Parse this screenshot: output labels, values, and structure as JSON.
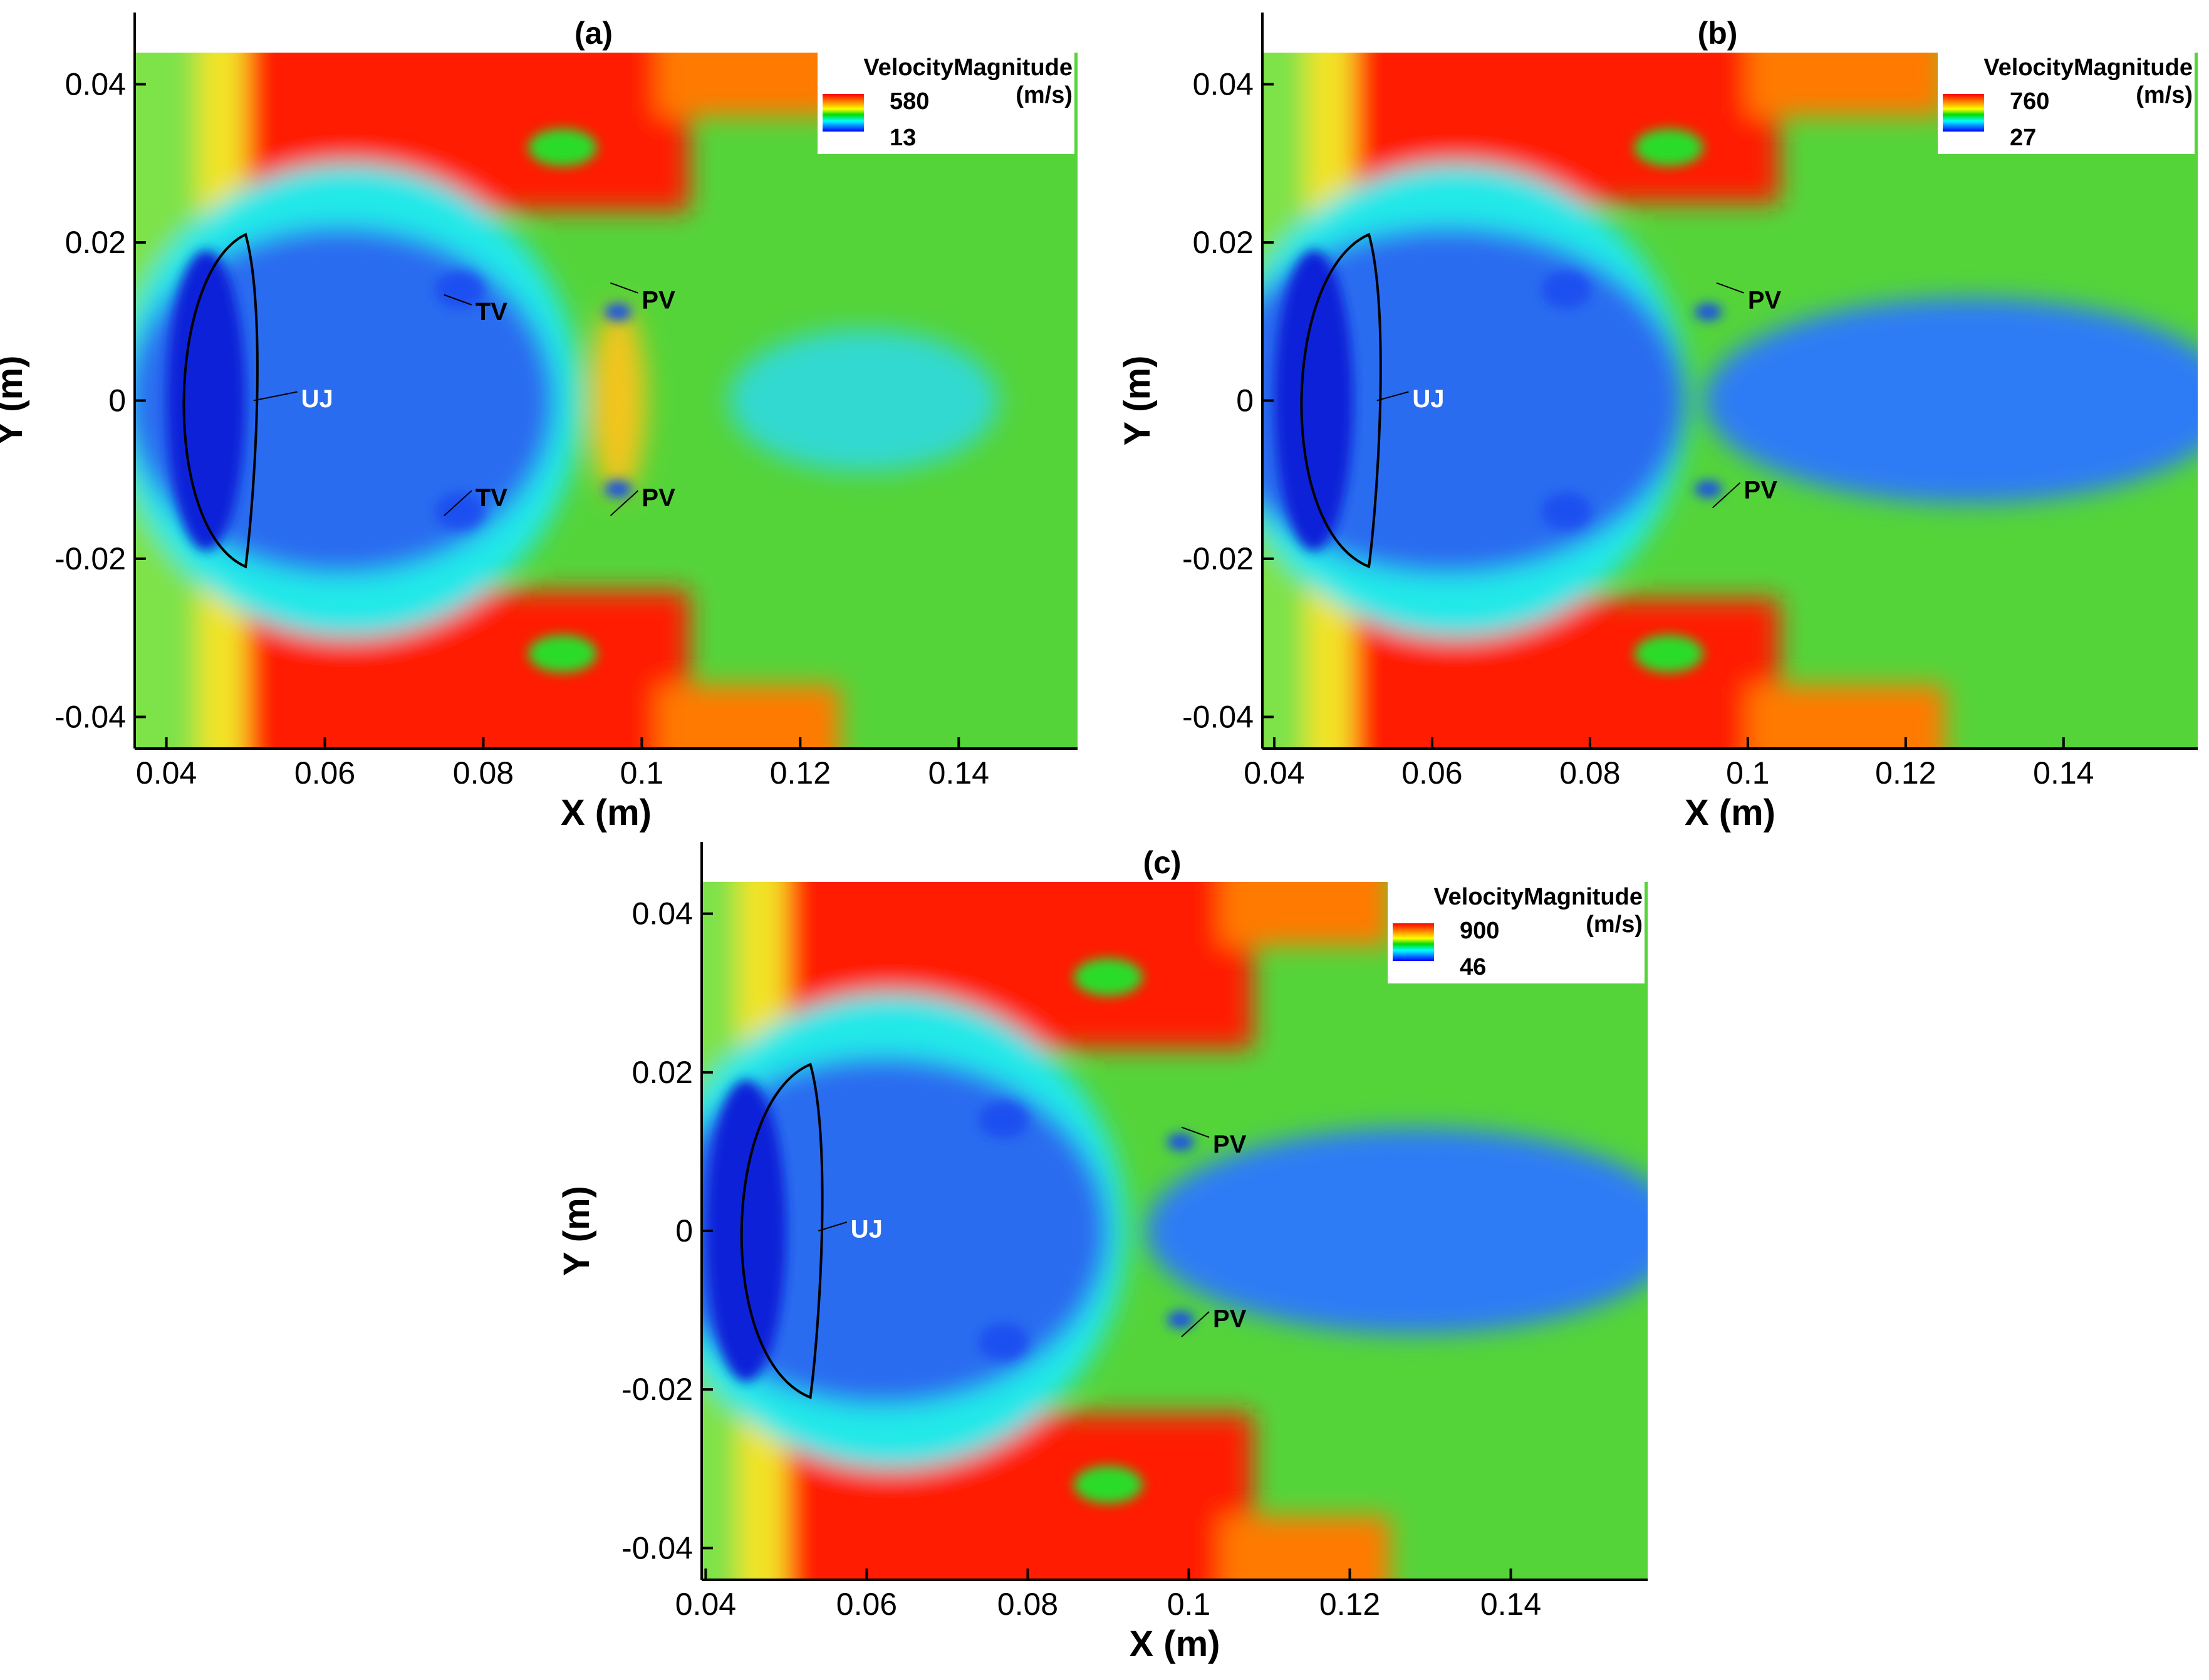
{
  "chart_data": [
    {
      "type": "heatmap",
      "title": "(a)",
      "xlabel": "X (m)",
      "ylabel": "Y (m)",
      "xlim": [
        0.036,
        0.155
      ],
      "ylim": [
        -0.044,
        0.044
      ],
      "xticks": [
        0.04,
        0.06,
        0.08,
        0.1,
        0.12,
        0.14
      ],
      "xtick_labels": [
        "0.04",
        "0.06",
        "0.08",
        "0.1",
        "0.12",
        "0.14"
      ],
      "yticks": [
        0.04,
        0.02,
        0,
        -0.02,
        -0.04
      ],
      "ytick_labels": [
        "0.04",
        "0.02",
        "0",
        "-0.02",
        "-0.04"
      ],
      "colorbar": {
        "title": "VelocityMagnitude",
        "unit": "(m/s)",
        "max": 580,
        "min": 13,
        "max_label": "580",
        "min_label": "13",
        "colormap": "rainbow",
        "placement": "top-right"
      },
      "annotations": [
        {
          "text": "UJ",
          "x": 0.057,
          "y": 0.0,
          "color": "#ffffff"
        },
        {
          "text": "TV",
          "x": 0.079,
          "y": 0.011,
          "color": "#000000"
        },
        {
          "text": "TV",
          "x": 0.079,
          "y": -0.0125,
          "color": "#000000"
        },
        {
          "text": "PV",
          "x": 0.1,
          "y": 0.0125,
          "color": "#000000"
        },
        {
          "text": "PV",
          "x": 0.1,
          "y": -0.0125,
          "color": "#000000"
        }
      ]
    },
    {
      "type": "heatmap",
      "title": "(b)",
      "xlabel": "X (m)",
      "ylabel": "Y (m)",
      "xlim": [
        0.0385,
        0.157
      ],
      "ylim": [
        -0.044,
        0.044
      ],
      "xticks": [
        0.04,
        0.06,
        0.08,
        0.1,
        0.12,
        0.14
      ],
      "xtick_labels": [
        "0.04",
        "0.06",
        "0.08",
        "0.1",
        "0.12",
        "0.14"
      ],
      "yticks": [
        0.04,
        0.02,
        0,
        -0.02,
        -0.04
      ],
      "ytick_labels": [
        "0.04",
        "0.02",
        "0",
        "-0.02",
        "-0.04"
      ],
      "colorbar": {
        "title": "VelocityMagnitude",
        "unit": "(m/s)",
        "max": 760,
        "min": 27,
        "max_label": "760",
        "min_label": "27",
        "colormap": "rainbow",
        "placement": "top-right"
      },
      "annotations": [
        {
          "text": "UJ",
          "x": 0.0575,
          "y": 0.0,
          "color": "#ffffff"
        },
        {
          "text": "PV",
          "x": 0.1,
          "y": 0.0125,
          "color": "#000000"
        },
        {
          "text": "PV",
          "x": 0.0995,
          "y": -0.0115,
          "color": "#000000"
        }
      ]
    },
    {
      "type": "heatmap",
      "title": "(c)",
      "xlabel": "X (m)",
      "ylabel": "Y (m)",
      "xlim": [
        0.0395,
        0.157
      ],
      "ylim": [
        -0.044,
        0.044
      ],
      "xticks": [
        0.04,
        0.06,
        0.08,
        0.1,
        0.12,
        0.14
      ],
      "xtick_labels": [
        "0.04",
        "0.06",
        "0.08",
        "0.1",
        "0.12",
        "0.14"
      ],
      "yticks": [
        0.04,
        0.02,
        0,
        -0.02,
        -0.04
      ],
      "ytick_labels": [
        "0.04",
        "0.02",
        "0",
        "-0.02",
        "-0.04"
      ],
      "colorbar": {
        "title": "VelocityMagnitude",
        "unit": "(m/s)",
        "max": 900,
        "min": 46,
        "max_label": "900",
        "min_label": "46",
        "colormap": "rainbow",
        "placement": "top-right"
      },
      "annotations": [
        {
          "text": "UJ",
          "x": 0.058,
          "y": 0.0,
          "color": "#ffffff"
        },
        {
          "text": "PV",
          "x": 0.103,
          "y": 0.0107,
          "color": "#000000"
        },
        {
          "text": "PV",
          "x": 0.103,
          "y": -0.0113,
          "color": "#000000"
        }
      ]
    }
  ]
}
